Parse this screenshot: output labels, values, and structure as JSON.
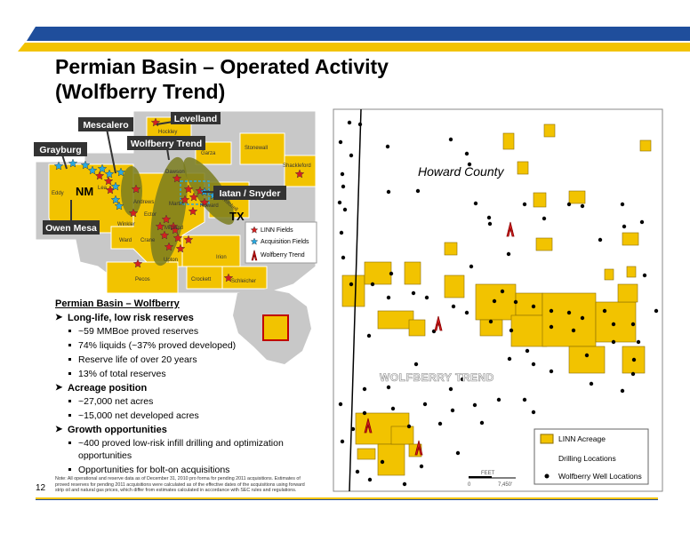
{
  "header": {
    "title_lines": [
      "Permian Basin – Operated Activity",
      "(Wolfberry Trend)"
    ]
  },
  "left_map": {
    "callouts": [
      "Mescalero",
      "Grayburg",
      "Levelland",
      "Wolfberry Trend",
      "Iatan / Snyder",
      "Owen Mesa"
    ],
    "states": [
      "NM",
      "TX"
    ],
    "counties": [
      "Hockley",
      "Garza",
      "Stonewall",
      "Shackleford",
      "Eddy",
      "Lea",
      "Dawson",
      "Andrews",
      "Martin",
      "Howard",
      "Ector",
      "Mitchell",
      "Winkler",
      "Midland",
      "Ward",
      "Crane",
      "Upton",
      "Irion",
      "Pecos",
      "Crockett",
      "Schleicher"
    ],
    "legend": [
      "LINN Fields",
      "Acquisition Fields",
      "Wolfberry Trend"
    ]
  },
  "summary": {
    "heading": "Permian Basin – Wolfberry",
    "sections": [
      {
        "title": "Long-life, low risk reserves",
        "items": [
          "~59 MMBoe proved reserves",
          "74% liquids (~37% proved developed)",
          "Reserve life of over 20 years",
          "13% of total reserves"
        ]
      },
      {
        "title": "Acreage position",
        "items": [
          "~27,000 net acres",
          "~15,000 net developed acres"
        ]
      },
      {
        "title": "Growth opportunities",
        "items": [
          "~400 proved low-risk infill drilling and optimization opportunities",
          "Opportunities for bolt-on acquisitions"
        ]
      }
    ]
  },
  "note": "Note: All operational and reserve data as of December 31, 2010 pro forma for pending 2011 acquisitions. Estimates of proved reserves for pending 2011 acquisitions were calculated as of the effective dates of the acquisitions using forward strip oil and natural gas prices, which differ from estimates calculated in accordance with SEC rules and regulations.",
  "page_number": "12",
  "right_map": {
    "county": "Howard County",
    "trend": "WOLFBERRY TREND",
    "legend": [
      "LINN Acreage",
      "Drilling Locations",
      "Wolfberry Well Locations"
    ],
    "scale": {
      "unit": "FEET",
      "start": "0",
      "end": "7,450'"
    }
  }
}
